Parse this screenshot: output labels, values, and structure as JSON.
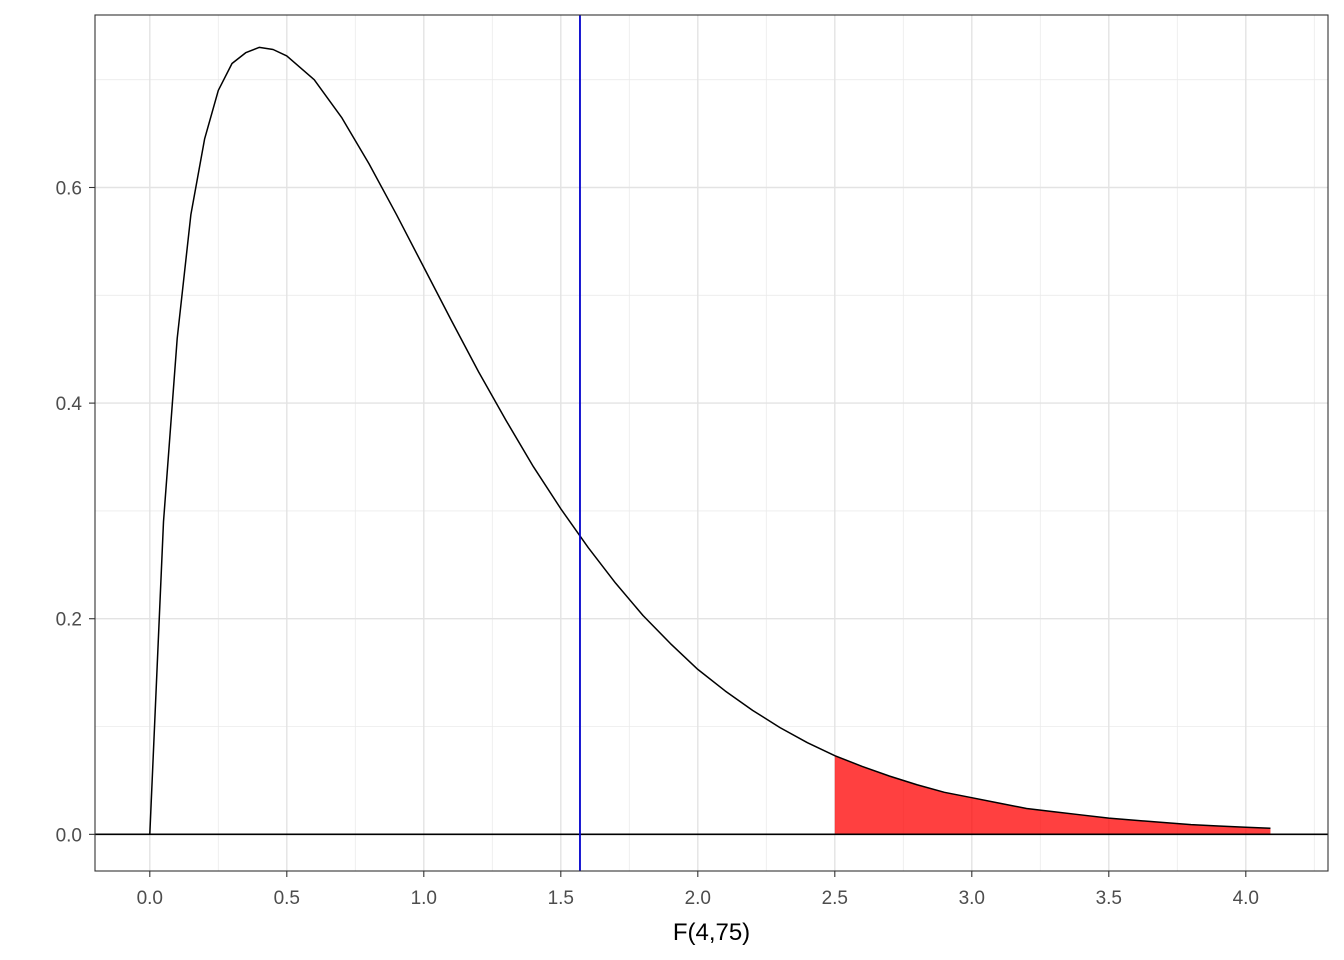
{
  "chart_data": {
    "type": "line",
    "title": "",
    "xlabel": "F(4,75)",
    "ylabel": "",
    "xlim": [
      -0.2,
      4.3
    ],
    "ylim": [
      -0.034,
      0.76
    ],
    "x_ticks": [
      0.0,
      0.5,
      1.0,
      1.5,
      2.0,
      2.5,
      3.0,
      3.5,
      4.0
    ],
    "x_tick_labels": [
      "0.0",
      "0.5",
      "1.0",
      "1.5",
      "2.0",
      "2.5",
      "3.0",
      "3.5",
      "4.0"
    ],
    "y_ticks": [
      0.0,
      0.2,
      0.4,
      0.6
    ],
    "y_tick_labels": [
      "0.0",
      "0.2",
      "0.4",
      "0.6"
    ],
    "x_minor_ticks": [
      0.25,
      0.75,
      1.25,
      1.75,
      2.25,
      2.75,
      3.25,
      3.75,
      4.25
    ],
    "y_minor_ticks": [
      0.1,
      0.3,
      0.5,
      0.7
    ],
    "grid": true,
    "distribution": {
      "name": "F",
      "df1": 4,
      "df2": 75
    },
    "curve_range": [
      0,
      4.09
    ],
    "series": [
      {
        "x": [
          0,
          0.05,
          0.1,
          0.15,
          0.2,
          0.25,
          0.3,
          0.35,
          0.4,
          0.45,
          0.5,
          0.6,
          0.7,
          0.8,
          0.9,
          1.0,
          1.1,
          1.2,
          1.3,
          1.4,
          1.5,
          1.6,
          1.7,
          1.8,
          1.9,
          2.0,
          2.1,
          2.2,
          2.3,
          2.4,
          2.5,
          2.6,
          2.7,
          2.8,
          2.9,
          3.0,
          3.1,
          3.2,
          3.3,
          3.4,
          3.5,
          3.6,
          3.7,
          3.8,
          3.9,
          4.0,
          4.09
        ],
        "y": [
          0,
          0.29,
          0.46,
          0.575,
          0.645,
          0.69,
          0.715,
          0.725,
          0.73,
          0.728,
          0.722,
          0.7,
          0.665,
          0.622,
          0.575,
          0.526,
          0.477,
          0.429,
          0.384,
          0.341,
          0.302,
          0.266,
          0.233,
          0.203,
          0.177,
          0.153,
          0.133,
          0.115,
          0.099,
          0.085,
          0.073,
          0.063,
          0.054,
          0.046,
          0.039,
          0.034,
          0.029,
          0.024,
          0.021,
          0.018,
          0.015,
          0.013,
          0.011,
          0.009,
          0.0078,
          0.0066,
          0.0057
        ],
        "color": "#000000"
      }
    ],
    "shaded_region": {
      "from": 2.5,
      "to": 4.09,
      "color": "#ff0000",
      "opacity": 0.75
    },
    "vertical_line": {
      "x": 1.57,
      "color": "#0000cd"
    },
    "horizontal_line": {
      "y": 0,
      "color": "#000000"
    }
  }
}
